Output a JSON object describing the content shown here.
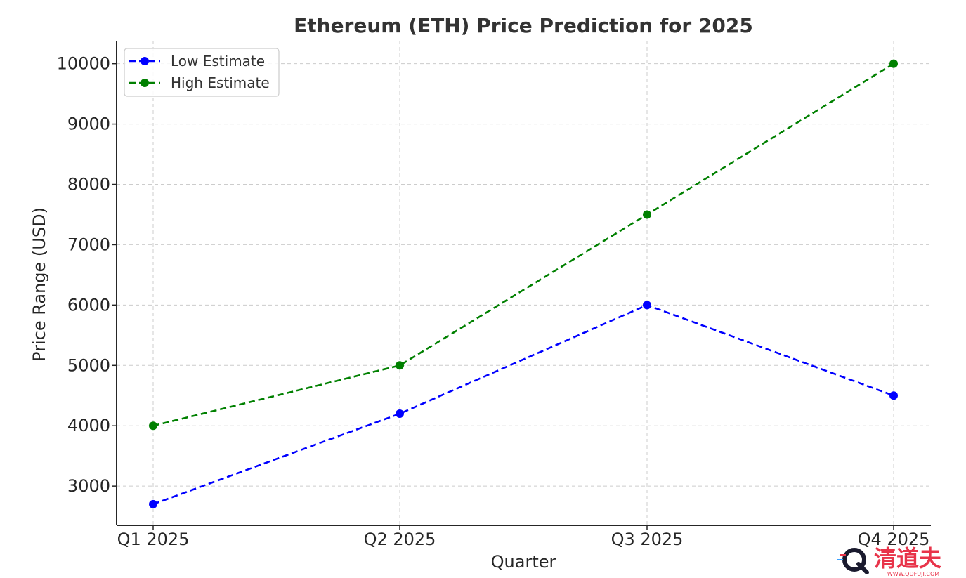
{
  "chart_data": {
    "type": "line",
    "title": "Ethereum (ETH) Price Prediction for 2025",
    "xlabel": "Quarter",
    "ylabel": "Price Range (USD)",
    "categories": [
      "Q1 2025",
      "Q2 2025",
      "Q3 2025",
      "Q4 2025"
    ],
    "series": [
      {
        "name": "Low Estimate",
        "values": [
          2700,
          4200,
          6000,
          4500
        ],
        "color": "#0000ff",
        "line_style": "dashed",
        "marker": "circle"
      },
      {
        "name": "High Estimate",
        "values": [
          4000,
          5000,
          7500,
          10000
        ],
        "color": "#008000",
        "line_style": "dashed",
        "marker": "circle"
      }
    ],
    "yticks": [
      3000,
      4000,
      5000,
      6000,
      7000,
      8000,
      9000,
      10000
    ],
    "ylim": [
      2350,
      10380
    ],
    "grid": true,
    "legend_position": "top-left"
  },
  "watermark": {
    "text": "清道夫",
    "subtext": "WWW.QDFUJI.COM",
    "color": "#e8344a"
  }
}
